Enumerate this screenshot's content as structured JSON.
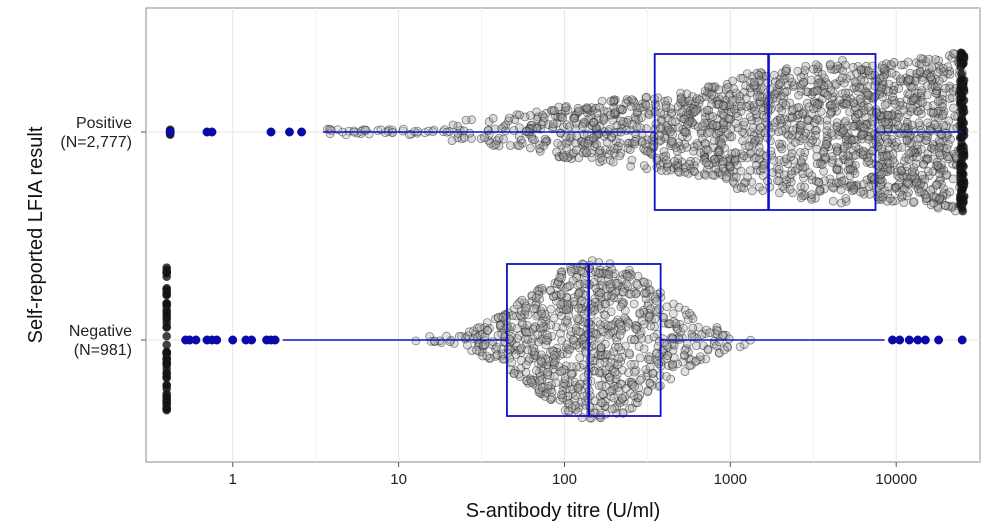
{
  "chart_data": {
    "type": "boxplot",
    "orientation": "horizontal",
    "xlabel": "S-antibody titre (U/ml)",
    "ylabel": "Self-reported LFIA result",
    "xscale": "log10",
    "xlim": [
      0.3,
      32000
    ],
    "x_ticks": [
      1,
      10,
      100,
      1000,
      10000
    ],
    "x_tick_labels": [
      "1",
      "10",
      "100",
      "1000",
      "10000"
    ],
    "grid": true,
    "categories": [
      {
        "label": "Positive",
        "n_label": "(N=2,777)"
      },
      {
        "label": "Negative",
        "n_label": "(N=981)"
      }
    ],
    "boxes": [
      {
        "category": "Positive",
        "whisker_low": 3.5,
        "q1": 350,
        "median": 1700,
        "q3": 7500,
        "whisker_high": 25000,
        "outliers": [
          0.42,
          0.7,
          0.75,
          1.7,
          2.2,
          2.6
        ]
      },
      {
        "category": "Negative",
        "whisker_low": 2.0,
        "q1": 45,
        "median": 140,
        "q3": 380,
        "whisker_high": 8500,
        "outliers": [
          0.52,
          0.55,
          0.6,
          0.7,
          0.75,
          0.8,
          1.0,
          1.2,
          1.3,
          1.6,
          1.7,
          1.8,
          9500,
          10500,
          12000,
          13500,
          15000,
          18000,
          25000
        ]
      }
    ],
    "box_color": "#1010cc",
    "point_color": "#808080",
    "outlier_color": "#0a0aa8"
  }
}
